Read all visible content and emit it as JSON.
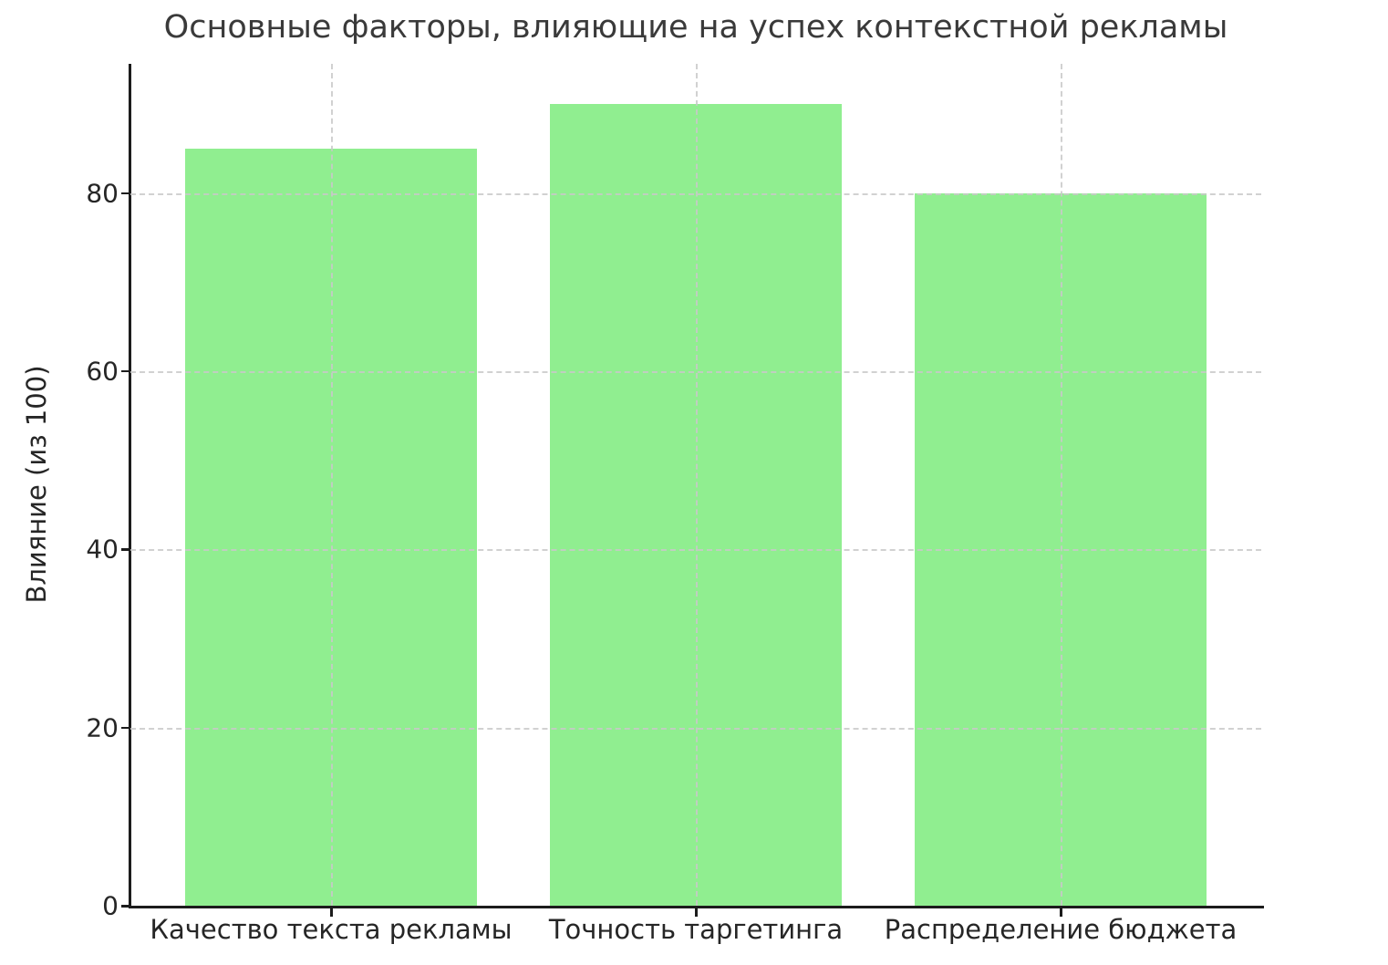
{
  "chart_data": {
    "type": "bar",
    "title": "Основные факторы, влияющие на успех контекстной рекламы",
    "categories": [
      "Качество текста рекламы",
      "Точность таргетинга",
      "Распределение бюджета"
    ],
    "values": [
      85,
      90,
      80
    ],
    "xlabel": "",
    "ylabel": "Влияние (из 100)",
    "ylim": [
      0,
      94.5
    ],
    "yticks": [
      0,
      20,
      40,
      60,
      80
    ],
    "grid": "dashed, both axes, drawn over bars",
    "legend": "none",
    "colors": {
      "bar": "#90EE90",
      "grid": "#c9c9c9",
      "spine": "#1c1c1c",
      "title_text": "#3a3a3a",
      "tick_text": "#262626"
    }
  }
}
